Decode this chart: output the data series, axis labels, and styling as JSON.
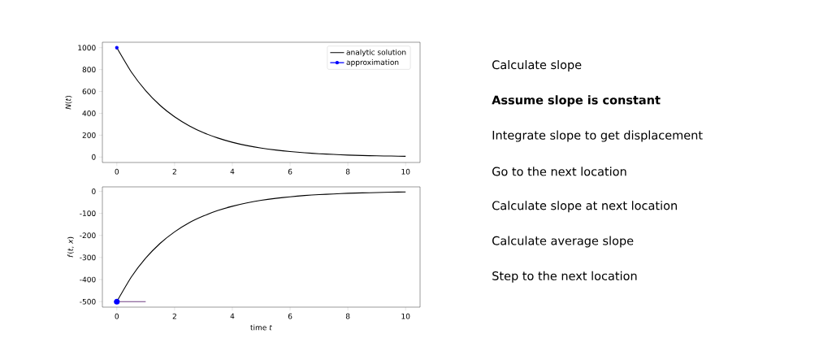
{
  "chart_data": [
    {
      "type": "line",
      "ylabel": "*N*(*t*)",
      "xlim": [
        -0.5,
        10.5
      ],
      "ylim": [
        -50,
        1050
      ],
      "xticks": [
        0,
        2,
        4,
        6,
        8,
        10
      ],
      "yticks": [
        0,
        200,
        400,
        600,
        800,
        1000
      ],
      "legend": "top right",
      "line_style": "solid",
      "series": [
        {
          "name": "analytic solution",
          "color": "#000000",
          "marker": "none",
          "x": [
            0,
            0.5,
            1,
            1.5,
            2,
            2.5,
            3,
            3.5,
            4,
            4.5,
            5,
            5.5,
            6,
            6.5,
            7,
            7.5,
            8,
            8.5,
            9,
            9.5,
            10
          ],
          "values": [
            1000,
            779,
            607,
            472,
            368,
            287,
            223,
            174,
            135,
            105,
            82,
            64,
            50,
            39,
            30,
            24,
            18,
            14,
            11,
            9,
            7
          ]
        },
        {
          "name": "approximation",
          "color": "#0000ff",
          "marker": "circle",
          "x": [
            0
          ],
          "values": [
            1000
          ]
        }
      ]
    },
    {
      "type": "line",
      "xlabel": "time *t*",
      "ylabel": "*f*(*t*, *x*)",
      "xlim": [
        -0.5,
        10.5
      ],
      "ylim": [
        -525,
        20
      ],
      "xticks": [
        0,
        2,
        4,
        6,
        8,
        10
      ],
      "yticks": [
        -500,
        -400,
        -300,
        -200,
        -100,
        0
      ],
      "line_style": "solid",
      "series": [
        {
          "color": "#000000",
          "marker": "none",
          "x": [
            0,
            0.5,
            1,
            1.5,
            2,
            2.5,
            3,
            3.5,
            4,
            4.5,
            5,
            5.5,
            6,
            6.5,
            7,
            7.5,
            8,
            8.5,
            9,
            9.5,
            10
          ],
          "values": [
            -500,
            -389,
            -303,
            -236,
            -184,
            -143,
            -112,
            -87,
            -68,
            -53,
            -41,
            -32,
            -25,
            -19,
            -15,
            -12,
            -9,
            -7,
            -6,
            -4,
            -3
          ]
        },
        {
          "type": "line",
          "color": "#6f3f82",
          "marker": "none",
          "x": [
            0,
            1
          ],
          "values": [
            -500,
            -500
          ]
        },
        {
          "type": "scatter",
          "color": "#0000ff",
          "marker": "circle",
          "x": [
            0
          ],
          "values": [
            -500
          ]
        }
      ]
    },
    {
      "type": "other",
      "annotations": [
        "Calculate slope",
        "**Assume slope is constant**",
        "Integrate slope to get displacement",
        "Go to the next location",
        "Calculate slope at next location",
        "Calculate average slope",
        "Step to the next location"
      ]
    }
  ]
}
